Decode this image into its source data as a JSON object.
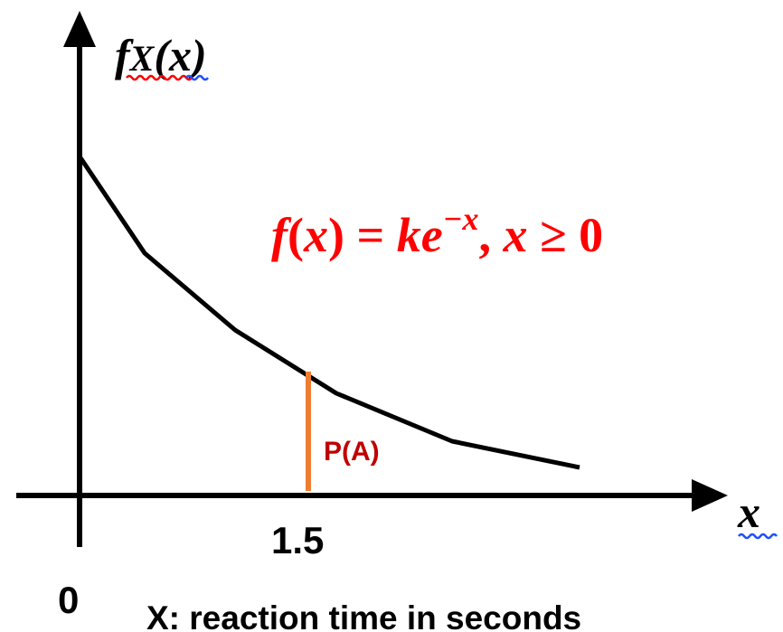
{
  "y_axis_label": {
    "f": "f",
    "sub": "X",
    "arg": "(x)"
  },
  "x_axis_label": "x",
  "origin_label": "0",
  "marker_label": "1.5",
  "area_label": "P(A)",
  "equation": {
    "f": "f",
    "lp": "(",
    "x1": "x",
    "rp": ")",
    "eq": " = ",
    "k": "k",
    "e": "e",
    "exp": "−x",
    "comma": ", ",
    "x2": "x",
    "geq": " ≥ ",
    "zero": "0"
  },
  "caption": "X: reaction time in seconds",
  "colors": {
    "curve": "#000000",
    "axes": "#000000",
    "equation": "#ff0000",
    "area": "#c00000",
    "marker": "#ed7d31",
    "underline_red": "#ff0000",
    "underline_blue": "#1f4fff"
  }
}
